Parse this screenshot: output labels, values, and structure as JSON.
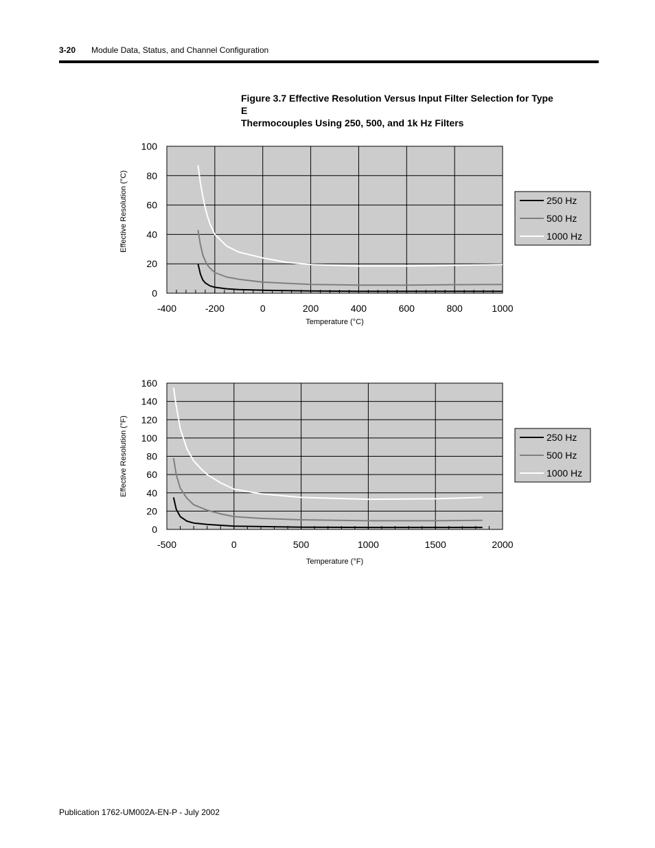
{
  "header": {
    "page_number": "3-20",
    "section_title": "Module Data, Status, and Channel Configuration"
  },
  "figure": {
    "caption_line1": "Figure 3.7 Effective Resolution Versus Input Filter Selection for Type E",
    "caption_line2": "Thermocouples Using 250, 500, and 1k Hz Filters"
  },
  "footer": {
    "publication": "Publication 1762-UM002A-EN-P - July 2002"
  },
  "colors": {
    "plot_bg": "#cccccc",
    "series_250": "#000000",
    "series_500": "#7f7f7f",
    "series_1000": "#ffffff"
  },
  "chart_data": [
    {
      "type": "line",
      "xlabel": "Temperature (°C)",
      "ylabel": "Effective Resolution (°C)",
      "xlim": [
        -400,
        1000
      ],
      "ylim": [
        0,
        100
      ],
      "xticks": [
        "-400",
        "-200",
        "0",
        "200",
        "400",
        "600",
        "800",
        "1000"
      ],
      "yticks": [
        "0",
        "20",
        "40",
        "60",
        "80",
        "100"
      ],
      "grid": true,
      "legend": "right",
      "series": [
        {
          "name": "250  Hz",
          "color": "#000000",
          "x": [
            -270,
            -260,
            -250,
            -240,
            -230,
            -220,
            -200,
            -150,
            -100,
            0,
            200,
            400,
            600,
            800,
            1000
          ],
          "y": [
            20,
            13,
            9,
            7,
            6,
            5,
            4,
            3,
            2.5,
            2,
            1.5,
            1.3,
            1.3,
            1.3,
            1.3
          ]
        },
        {
          "name": "500  Hz",
          "color": "#7f7f7f",
          "x": [
            -270,
            -260,
            -250,
            -240,
            -230,
            -220,
            -200,
            -150,
            -100,
            0,
            200,
            400,
            600,
            800,
            1000
          ],
          "y": [
            43,
            33,
            26,
            22,
            19,
            17,
            14,
            11,
            9.5,
            7.5,
            6,
            5.5,
            5.5,
            5.8,
            6
          ]
        },
        {
          "name": "1000 Hz",
          "color": "#ffffff",
          "x": [
            -270,
            -260,
            -250,
            -240,
            -230,
            -220,
            -200,
            -150,
            -100,
            -50,
            0,
            100,
            200,
            400,
            600,
            800,
            1000
          ],
          "y": [
            87,
            75,
            66,
            58,
            52,
            47,
            40,
            32,
            28,
            26,
            24,
            21,
            19.5,
            18.5,
            18.5,
            19,
            19.5
          ]
        }
      ]
    },
    {
      "type": "line",
      "xlabel": "Temperature (°F)",
      "ylabel": "Effective Resolution (°F)",
      "xlim": [
        -500,
        2000
      ],
      "ylim": [
        0,
        160
      ],
      "xticks": [
        "-500",
        "0",
        "500",
        "1000",
        "1500",
        "2000"
      ],
      "yticks": [
        "0",
        "20",
        "40",
        "60",
        "80",
        "100",
        "120",
        "140",
        "160"
      ],
      "grid": true,
      "legend": "right",
      "series": [
        {
          "name": "250  Hz",
          "color": "#000000",
          "x": [
            -450,
            -430,
            -400,
            -350,
            -300,
            -200,
            -100,
            0,
            500,
            1000,
            1500,
            1850
          ],
          "y": [
            35,
            22,
            14,
            9,
            7,
            5.5,
            4.5,
            3.5,
            2.5,
            2.2,
            2.2,
            2.2
          ]
        },
        {
          "name": "500  Hz",
          "color": "#7f7f7f",
          "x": [
            -450,
            -430,
            -400,
            -350,
            -300,
            -250,
            -200,
            -100,
            0,
            200,
            500,
            1000,
            1500,
            1850
          ],
          "y": [
            78,
            60,
            45,
            34,
            27,
            24,
            21,
            17,
            14,
            12,
            10.5,
            9.5,
            9.5,
            10
          ]
        },
        {
          "name": "1000 Hz",
          "color": "#ffffff",
          "x": [
            -450,
            -430,
            -400,
            -350,
            -300,
            -250,
            -200,
            -100,
            0,
            200,
            500,
            1000,
            1500,
            1850
          ],
          "y": [
            155,
            135,
            110,
            88,
            75,
            67,
            60,
            51,
            44,
            39,
            35,
            33,
            33.5,
            35
          ]
        }
      ]
    }
  ]
}
